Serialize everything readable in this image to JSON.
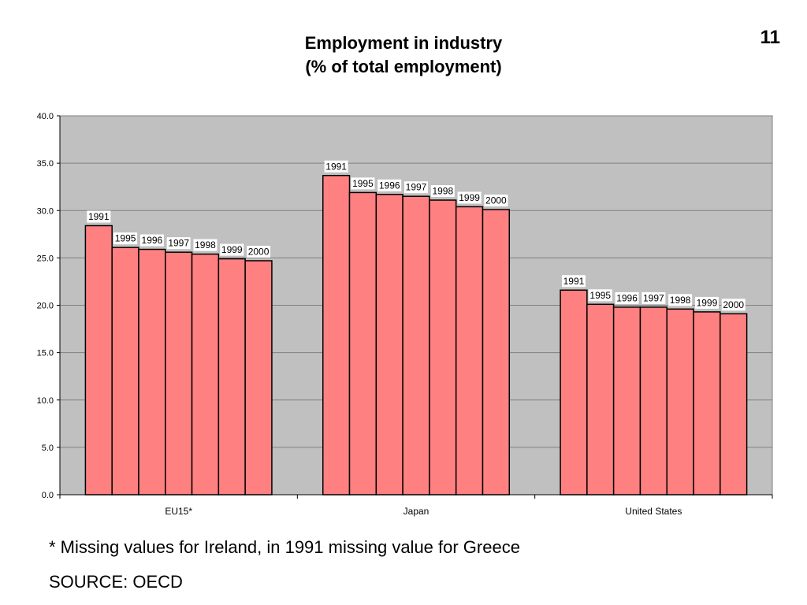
{
  "slide_number": "11",
  "title_line1": "Employment in industry",
  "title_line2": "(% of total employment)",
  "footnote": "* Missing values for Ireland, in 1991 missing value for Greece",
  "source": "SOURCE: OECD",
  "colors": {
    "bar_fill": "#ff8080",
    "bar_stroke": "#000000",
    "plot_background": "#c0c0c0",
    "gridline": "#808080",
    "label_box": "#ffffff"
  },
  "chart_data": {
    "type": "bar",
    "categories": [
      "EU15*",
      "Japan",
      "United States"
    ],
    "bar_labels": [
      "1991",
      "1995",
      "1996",
      "1997",
      "1998",
      "1999",
      "2000"
    ],
    "values": [
      [
        28.4,
        26.1,
        25.9,
        25.6,
        25.4,
        24.9,
        24.7
      ],
      [
        33.7,
        31.9,
        31.7,
        31.5,
        31.1,
        30.4,
        30.1
      ],
      [
        21.6,
        20.1,
        19.8,
        19.8,
        19.6,
        19.3,
        19.1
      ]
    ],
    "ylim": [
      0,
      40
    ],
    "yticks": [
      "0.0",
      "5.0",
      "10.0",
      "15.0",
      "20.0",
      "25.0",
      "30.0",
      "35.0",
      "40.0"
    ],
    "grid": true,
    "legend": "none"
  }
}
